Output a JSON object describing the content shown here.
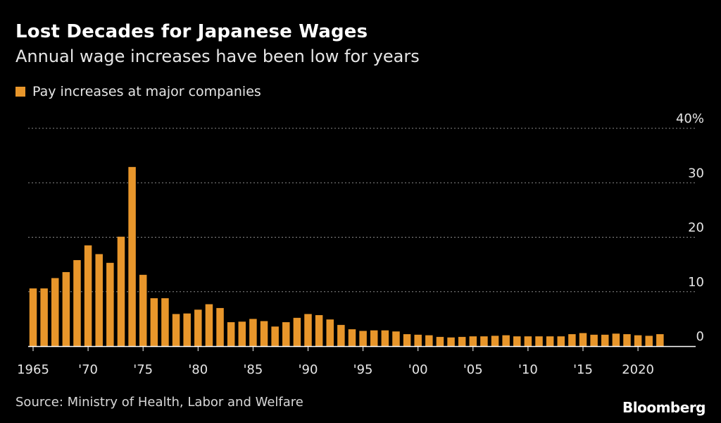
{
  "title": "Lost Decades for Japanese Wages",
  "subtitle": "Annual wage increases have been low for years",
  "source": "Source: Ministry of Health, Labor and Welfare",
  "logo": "Bloomberg",
  "colors": {
    "bar": "#e8962b",
    "background": "#000000",
    "grid": "#8a8a8a",
    "text": "#e6e6e6"
  },
  "chart_data": {
    "type": "bar",
    "title": "Lost Decades for Japanese Wages",
    "subtitle": "Annual wage increases have been low for years",
    "xlabel": "",
    "ylabel": "",
    "ylim": [
      0,
      40
    ],
    "grid": true,
    "legend": "top-left",
    "series": [
      {
        "name": "Pay increases at major companies",
        "x": [
          1965,
          1966,
          1967,
          1968,
          1969,
          1970,
          1971,
          1972,
          1973,
          1974,
          1975,
          1976,
          1977,
          1978,
          1979,
          1980,
          1981,
          1982,
          1983,
          1984,
          1985,
          1986,
          1987,
          1988,
          1989,
          1990,
          1991,
          1992,
          1993,
          1994,
          1995,
          1996,
          1997,
          1998,
          1999,
          2000,
          2001,
          2002,
          2003,
          2004,
          2005,
          2006,
          2007,
          2008,
          2009,
          2010,
          2011,
          2012,
          2013,
          2014,
          2015,
          2016,
          2017,
          2018,
          2019,
          2020,
          2021,
          2022
        ],
        "values": [
          10.6,
          10.6,
          12.5,
          13.6,
          15.8,
          18.5,
          16.9,
          15.3,
          20.1,
          32.9,
          13.1,
          8.8,
          8.8,
          5.9,
          6.0,
          6.7,
          7.7,
          7.0,
          4.4,
          4.5,
          5.0,
          4.6,
          3.6,
          4.4,
          5.2,
          5.9,
          5.7,
          4.9,
          3.9,
          3.1,
          2.8,
          2.9,
          2.9,
          2.7,
          2.2,
          2.1,
          2.0,
          1.7,
          1.6,
          1.7,
          1.8,
          1.8,
          1.9,
          2.0,
          1.8,
          1.8,
          1.8,
          1.8,
          1.8,
          2.2,
          2.4,
          2.1,
          2.1,
          2.3,
          2.2,
          2.0,
          1.9,
          2.2
        ]
      }
    ],
    "yticks": [
      {
        "value": 40,
        "label": "40%"
      },
      {
        "value": 30,
        "label": "30"
      },
      {
        "value": 20,
        "label": "20"
      },
      {
        "value": 10,
        "label": "10"
      },
      {
        "value": 0,
        "label": "0"
      }
    ],
    "xticks": [
      {
        "value": 1965,
        "label": "1965"
      },
      {
        "value": 1970,
        "label": "'70"
      },
      {
        "value": 1975,
        "label": "'75"
      },
      {
        "value": 1980,
        "label": "'80"
      },
      {
        "value": 1985,
        "label": "'85"
      },
      {
        "value": 1990,
        "label": "'90"
      },
      {
        "value": 1995,
        "label": "'95"
      },
      {
        "value": 2000,
        "label": "'00"
      },
      {
        "value": 2005,
        "label": "'05"
      },
      {
        "value": 2010,
        "label": "'10"
      },
      {
        "value": 2015,
        "label": "'15"
      },
      {
        "value": 2020,
        "label": "2020"
      }
    ]
  }
}
